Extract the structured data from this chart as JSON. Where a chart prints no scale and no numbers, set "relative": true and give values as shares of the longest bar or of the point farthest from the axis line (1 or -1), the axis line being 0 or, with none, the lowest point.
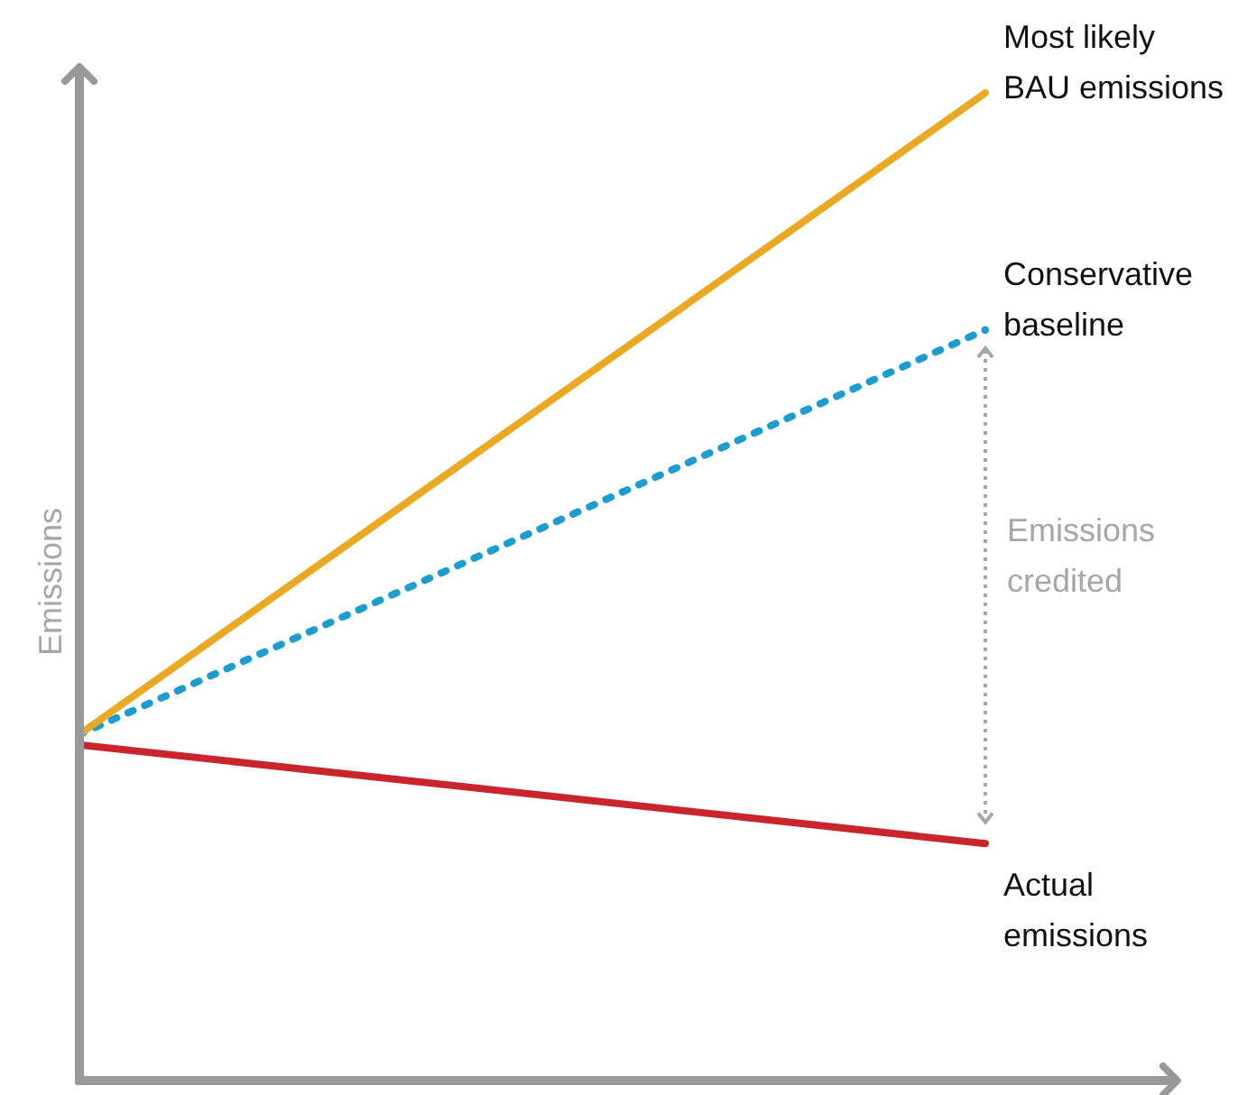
{
  "chart_data": {
    "type": "line",
    "relative": true,
    "ylabel": "Emissions",
    "categories": [
      null,
      null
    ],
    "legend": false,
    "grid": false,
    "series": [
      {
        "name": "Most likely BAU emissions",
        "color": "#eaa823",
        "values": [
          0.35,
          1
        ]
      },
      {
        "name": "Conservative baseline",
        "color": "#1b9dd0",
        "line_style": "dotted",
        "values": [
          0.35,
          0.76
        ]
      },
      {
        "name": "Actual emissions",
        "color": "#c9252c",
        "values": [
          0.34,
          0.24
        ]
      }
    ],
    "annotations": [
      "Emissions credited"
    ]
  }
}
